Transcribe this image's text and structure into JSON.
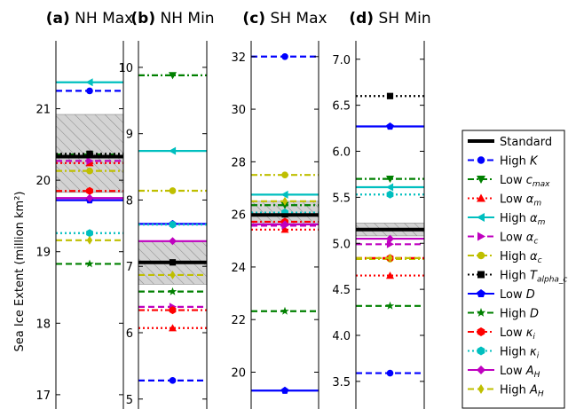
{
  "ylabel": "Sea Ice Extent (million km²)",
  "chart_data": [
    {
      "type": "line",
      "title_letter": "(a)",
      "title_text": " NH Max",
      "ylim": [
        16.8,
        21.95
      ],
      "yticks": [
        17,
        18,
        19,
        20,
        21
      ],
      "standard": 20.33,
      "band": [
        19.83,
        20.92
      ],
      "values": [
        21.25,
        20.36,
        20.24,
        21.37,
        20.27,
        20.13,
        20.37,
        19.72,
        18.83,
        19.85,
        19.26,
        19.75,
        19.16
      ]
    },
    {
      "type": "line",
      "title_letter": "(b)",
      "title_text": " NH Min",
      "ylim": [
        4.85,
        10.4
      ],
      "yticks": [
        5,
        6,
        7,
        8,
        9,
        10
      ],
      "standard": 7.06,
      "band": [
        6.73,
        7.38
      ],
      "values": [
        5.28,
        9.88,
        6.07,
        8.74,
        6.39,
        8.14,
        7.06,
        7.64,
        6.62,
        6.34,
        7.63,
        7.38,
        6.87
      ]
    },
    {
      "type": "line",
      "title_letter": "(c)",
      "title_text": " SH Max",
      "ylim": [
        18.6,
        32.6
      ],
      "yticks": [
        20,
        22,
        24,
        26,
        28,
        30,
        32
      ],
      "standard": 25.98,
      "band": [
        25.6,
        26.5
      ],
      "values": [
        32.0,
        26.35,
        25.42,
        26.75,
        25.57,
        27.5,
        26.0,
        19.3,
        22.32,
        25.72,
        26.07,
        25.62,
        26.5
      ]
    },
    {
      "type": "line",
      "title_letter": "(d)",
      "title_text": " SH Min",
      "ylim": [
        3.2,
        7.2
      ],
      "yticks": [
        3.5,
        4.0,
        4.5,
        5.0,
        5.5,
        6.0,
        6.5,
        7.0
      ],
      "ytick_labels": [
        "3.5",
        "4.0",
        "4.5",
        "5.0",
        "5.5",
        "6.0",
        "6.5",
        "7.0"
      ],
      "standard": 5.15,
      "band": [
        5.08,
        5.22
      ],
      "values": [
        3.59,
        5.7,
        4.65,
        5.61,
        4.99,
        4.83,
        6.6,
        6.27,
        4.32,
        4.84,
        5.53,
        5.05,
        4.84
      ]
    }
  ],
  "legend": {
    "standard": "Standard",
    "items": [
      {
        "label": "High K",
        "color": "#0000ff",
        "marker": "circle",
        "dash": "dashed"
      },
      {
        "label": "Low c_max",
        "color": "#008000",
        "marker": "tri_down",
        "dash": "dashdot"
      },
      {
        "label": "Low α_m",
        "color": "#ff0000",
        "marker": "tri_up",
        "dash": "dotted"
      },
      {
        "label": "High α_m",
        "color": "#00bfbf",
        "marker": "tri_left",
        "dash": "solid"
      },
      {
        "label": "Low α_c",
        "color": "#bf00bf",
        "marker": "tri_right",
        "dash": "dashed"
      },
      {
        "label": "High α_c",
        "color": "#bfbf00",
        "marker": "circle",
        "dash": "dashdot"
      },
      {
        "label": "High T_alpha_c",
        "color": "#000000",
        "marker": "square",
        "dash": "dotted"
      },
      {
        "label": "Low D",
        "color": "#0000ff",
        "marker": "pentagon",
        "dash": "solid"
      },
      {
        "label": "High D",
        "color": "#008000",
        "marker": "star",
        "dash": "dashed"
      },
      {
        "label": "Low κ_i",
        "color": "#ff0000",
        "marker": "hexagon",
        "dash": "dashdot"
      },
      {
        "label": "High κ_i",
        "color": "#00bfbf",
        "marker": "hexagon",
        "dash": "dotted"
      },
      {
        "label": "Low A_H",
        "color": "#bf00bf",
        "marker": "diamond",
        "dash": "solid"
      },
      {
        "label": "High A_H",
        "color": "#bfbf00",
        "marker": "thin_diamond",
        "dash": "dashed"
      }
    ]
  }
}
